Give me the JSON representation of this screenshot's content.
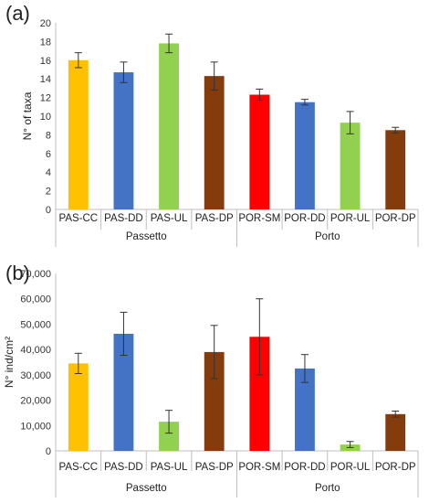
{
  "chart_data": [
    {
      "type": "bar",
      "panel_label": "(a)",
      "ylabel": "N° of taxa",
      "ylim": [
        0,
        20
      ],
      "ytick_step": 2,
      "ytick_labels": [
        "0",
        "2",
        "4",
        "6",
        "8",
        "10",
        "12",
        "14",
        "16",
        "18",
        "20"
      ],
      "categories": [
        "PAS-CC",
        "PAS-DD",
        "PAS-UL",
        "PAS-DP",
        "POR-SM",
        "POR-DD",
        "POR-UL",
        "POR-DP"
      ],
      "groups": [
        {
          "name": "Passetto",
          "count": 4
        },
        {
          "name": "Porto",
          "count": 4
        }
      ],
      "values": [
        16.0,
        14.7,
        17.8,
        14.3,
        12.3,
        11.5,
        9.3,
        8.5
      ],
      "errors": [
        0.8,
        1.1,
        1.0,
        1.5,
        0.6,
        0.3,
        1.2,
        0.3
      ],
      "colors": [
        "#FFC000",
        "#4472C4",
        "#92D050",
        "#843C0C",
        "#FF0000",
        "#4472C4",
        "#92D050",
        "#843C0C"
      ],
      "grid": false,
      "legend": "none"
    },
    {
      "type": "bar",
      "panel_label": "(b)",
      "ylabel": "N° ind/cm²",
      "ylim": [
        0,
        70000
      ],
      "ytick_step": 10000,
      "ytick_labels": [
        "0",
        "10,000",
        "20,000",
        "30,000",
        "40,000",
        "50,000",
        "60,000",
        "70,000"
      ],
      "categories": [
        "PAS-CC",
        "PAS-DD",
        "PAS-UL",
        "PAS-DP",
        "POR-SM",
        "POR-DD",
        "POR-UL",
        "POR-DP"
      ],
      "groups": [
        {
          "name": "Passetto",
          "count": 4
        },
        {
          "name": "Porto",
          "count": 4
        }
      ],
      "values": [
        34500,
        46200,
        11500,
        39000,
        45000,
        32500,
        2500,
        14500
      ],
      "errors": [
        4000,
        8500,
        4500,
        10500,
        15000,
        5500,
        1200,
        1200
      ],
      "colors": [
        "#FFC000",
        "#4472C4",
        "#92D050",
        "#843C0C",
        "#FF0000",
        "#4472C4",
        "#92D050",
        "#843C0C"
      ],
      "grid": false,
      "legend": "none"
    }
  ]
}
